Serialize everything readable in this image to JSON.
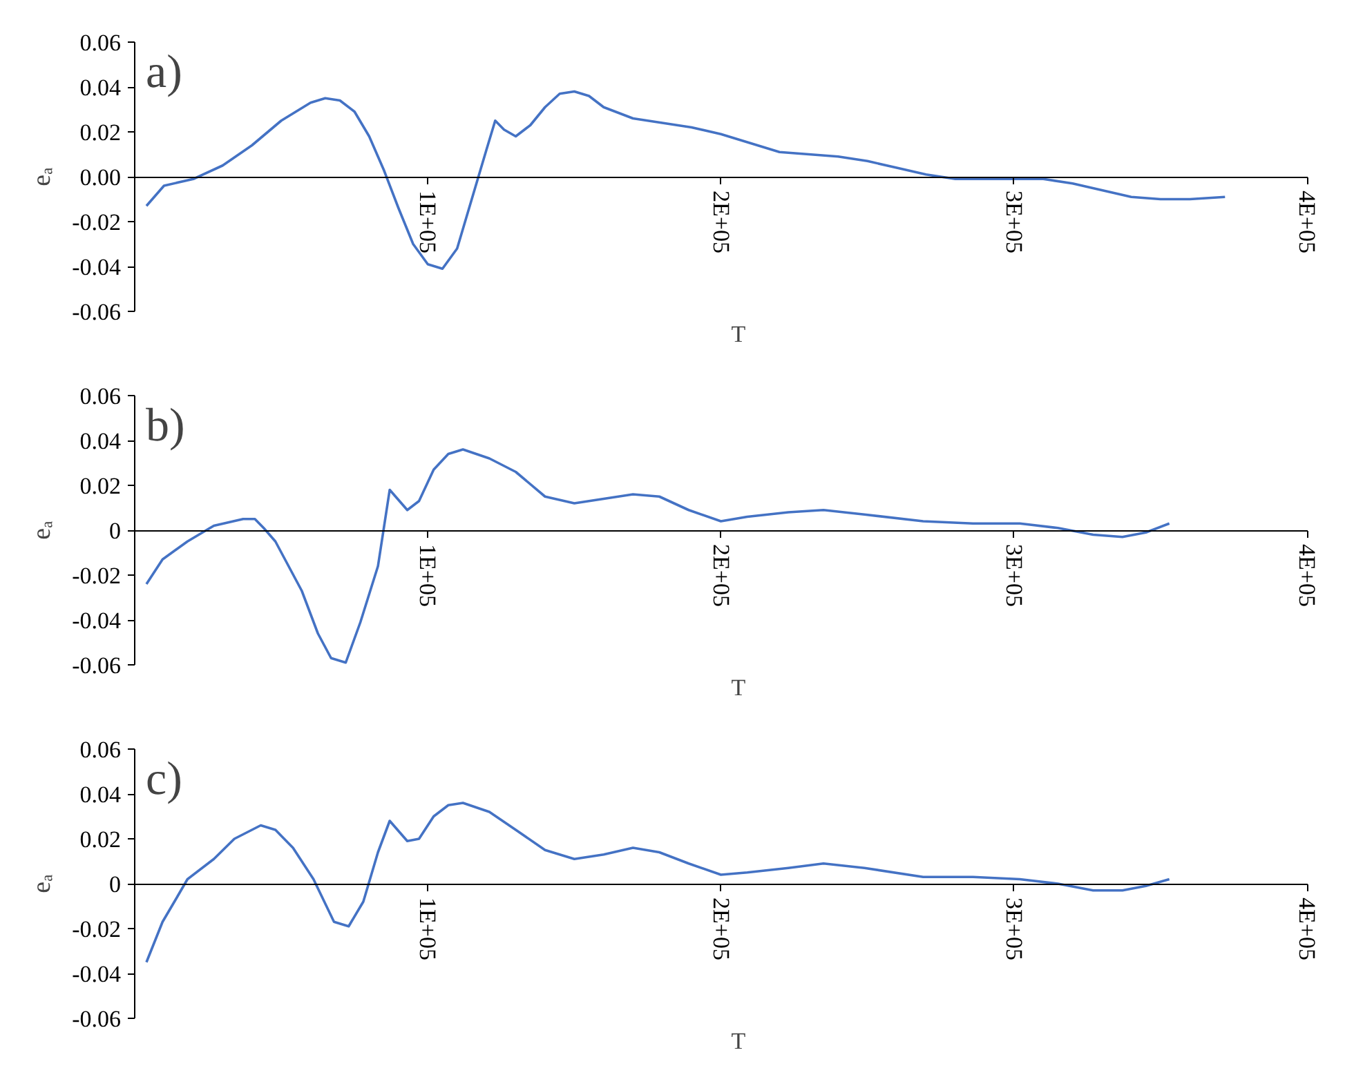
{
  "chart_data": [
    {
      "type": "line",
      "title": "a)",
      "xlabel": "T",
      "ylabel": "eₐ",
      "color": "#4472c4",
      "x": [
        4000,
        10000,
        20000,
        30000,
        40000,
        50000,
        60000,
        65000,
        70000,
        75000,
        80000,
        85000,
        90000,
        95000,
        100000,
        105000,
        110000,
        115000,
        120000,
        123000,
        126000,
        130000,
        135000,
        140000,
        145000,
        150000,
        155000,
        160000,
        170000,
        180000,
        190000,
        200000,
        210000,
        220000,
        230000,
        240000,
        250000,
        260000,
        270000,
        280000,
        290000,
        300000,
        310000,
        320000,
        330000,
        340000,
        350000,
        360000,
        372000
      ],
      "values": [
        -0.013,
        -0.004,
        -0.001,
        0.005,
        0.014,
        0.025,
        0.033,
        0.035,
        0.034,
        0.029,
        0.018,
        0.003,
        -0.014,
        -0.03,
        -0.039,
        -0.041,
        -0.032,
        -0.01,
        0.012,
        0.025,
        0.021,
        0.018,
        0.023,
        0.031,
        0.037,
        0.038,
        0.036,
        0.031,
        0.026,
        0.024,
        0.022,
        0.019,
        0.015,
        0.011,
        0.01,
        0.009,
        0.007,
        0.004,
        0.001,
        -0.001,
        -0.001,
        -0.001,
        -0.001,
        -0.003,
        -0.006,
        -0.009,
        -0.01,
        -0.01,
        -0.009
      ],
      "xlim": [
        0,
        400000
      ],
      "ylim": [
        -0.06,
        0.06
      ],
      "xticks": [
        {
          "value": 100000,
          "label": "1E+05"
        },
        {
          "value": 200000,
          "label": "2E+05"
        },
        {
          "value": 300000,
          "label": "3E+05"
        },
        {
          "value": 400000,
          "label": "4E+05"
        }
      ],
      "yticks": [
        -0.06,
        -0.04,
        -0.02,
        {
          "value": 0,
          "label": "0.00"
        },
        0.02,
        0.04,
        0.06
      ]
    },
    {
      "type": "line",
      "title": "b)",
      "xlabel": "T",
      "ylabel": "eₐ",
      "color": "#4472c4",
      "x": [
        4000,
        9500,
        18000,
        27000,
        37000,
        41000,
        44000,
        48000,
        57000,
        62500,
        67000,
        72000,
        77000,
        83000,
        87000,
        93000,
        97000,
        102000,
        107000,
        112000,
        121000,
        130000,
        140000,
        150000,
        160000,
        170000,
        179000,
        189000,
        200000,
        209000,
        223000,
        235000,
        249000,
        269000,
        286000,
        302000,
        315000,
        327000,
        337000,
        345000,
        353000
      ],
      "values": [
        -0.024,
        -0.013,
        -0.005,
        0.002,
        0.005,
        0.005,
        0.001,
        -0.005,
        -0.027,
        -0.046,
        -0.057,
        -0.059,
        -0.041,
        -0.016,
        0.018,
        0.009,
        0.013,
        0.027,
        0.034,
        0.036,
        0.032,
        0.026,
        0.015,
        0.012,
        0.014,
        0.016,
        0.015,
        0.009,
        0.004,
        0.006,
        0.008,
        0.009,
        0.007,
        0.004,
        0.003,
        0.003,
        0.001,
        -0.002,
        -0.003,
        -0.001,
        0.003
      ],
      "xlim": [
        0,
        400000
      ],
      "ylim": [
        -0.06,
        0.06
      ],
      "xticks": [
        {
          "value": 100000,
          "label": "1E+05"
        },
        {
          "value": 200000,
          "label": "2E+05"
        },
        {
          "value": 300000,
          "label": "3E+05"
        },
        {
          "value": 400000,
          "label": "4E+05"
        }
      ],
      "yticks": [
        -0.06,
        -0.04,
        -0.02,
        0,
        0.02,
        0.04,
        0.06
      ]
    },
    {
      "type": "line",
      "title": "c)",
      "xlabel": "T",
      "ylabel": "eₐ",
      "color": "#4472c4",
      "x": [
        4000,
        9500,
        14000,
        18000,
        27000,
        34000,
        40000,
        43000,
        48000,
        54000,
        61000,
        68000,
        73000,
        78000,
        83000,
        87000,
        93000,
        97000,
        102000,
        107000,
        112000,
        121000,
        130000,
        140000,
        150000,
        160000,
        170000,
        179000,
        189000,
        200000,
        209000,
        223000,
        235000,
        249000,
        269000,
        286000,
        302000,
        315000,
        327000,
        337000,
        345000,
        353000
      ],
      "values": [
        -0.035,
        -0.017,
        -0.007,
        0.002,
        0.011,
        0.02,
        0.024,
        0.026,
        0.024,
        0.016,
        0.002,
        -0.017,
        -0.019,
        -0.008,
        0.014,
        0.028,
        0.019,
        0.02,
        0.03,
        0.035,
        0.036,
        0.032,
        0.024,
        0.015,
        0.011,
        0.013,
        0.016,
        0.014,
        0.009,
        0.004,
        0.005,
        0.007,
        0.009,
        0.007,
        0.003,
        0.003,
        0.002,
        0,
        -0.003,
        -0.003,
        -0.001,
        0.002
      ],
      "xlim": [
        0,
        400000
      ],
      "ylim": [
        -0.06,
        0.06
      ],
      "xticks": [
        {
          "value": 100000,
          "label": "1E+05"
        },
        {
          "value": 200000,
          "label": "2E+05"
        },
        {
          "value": 300000,
          "label": "3E+05"
        },
        {
          "value": 400000,
          "label": "4E+05"
        }
      ],
      "yticks": [
        -0.06,
        -0.04,
        -0.02,
        0,
        0.02,
        0.04,
        0.06
      ]
    }
  ]
}
